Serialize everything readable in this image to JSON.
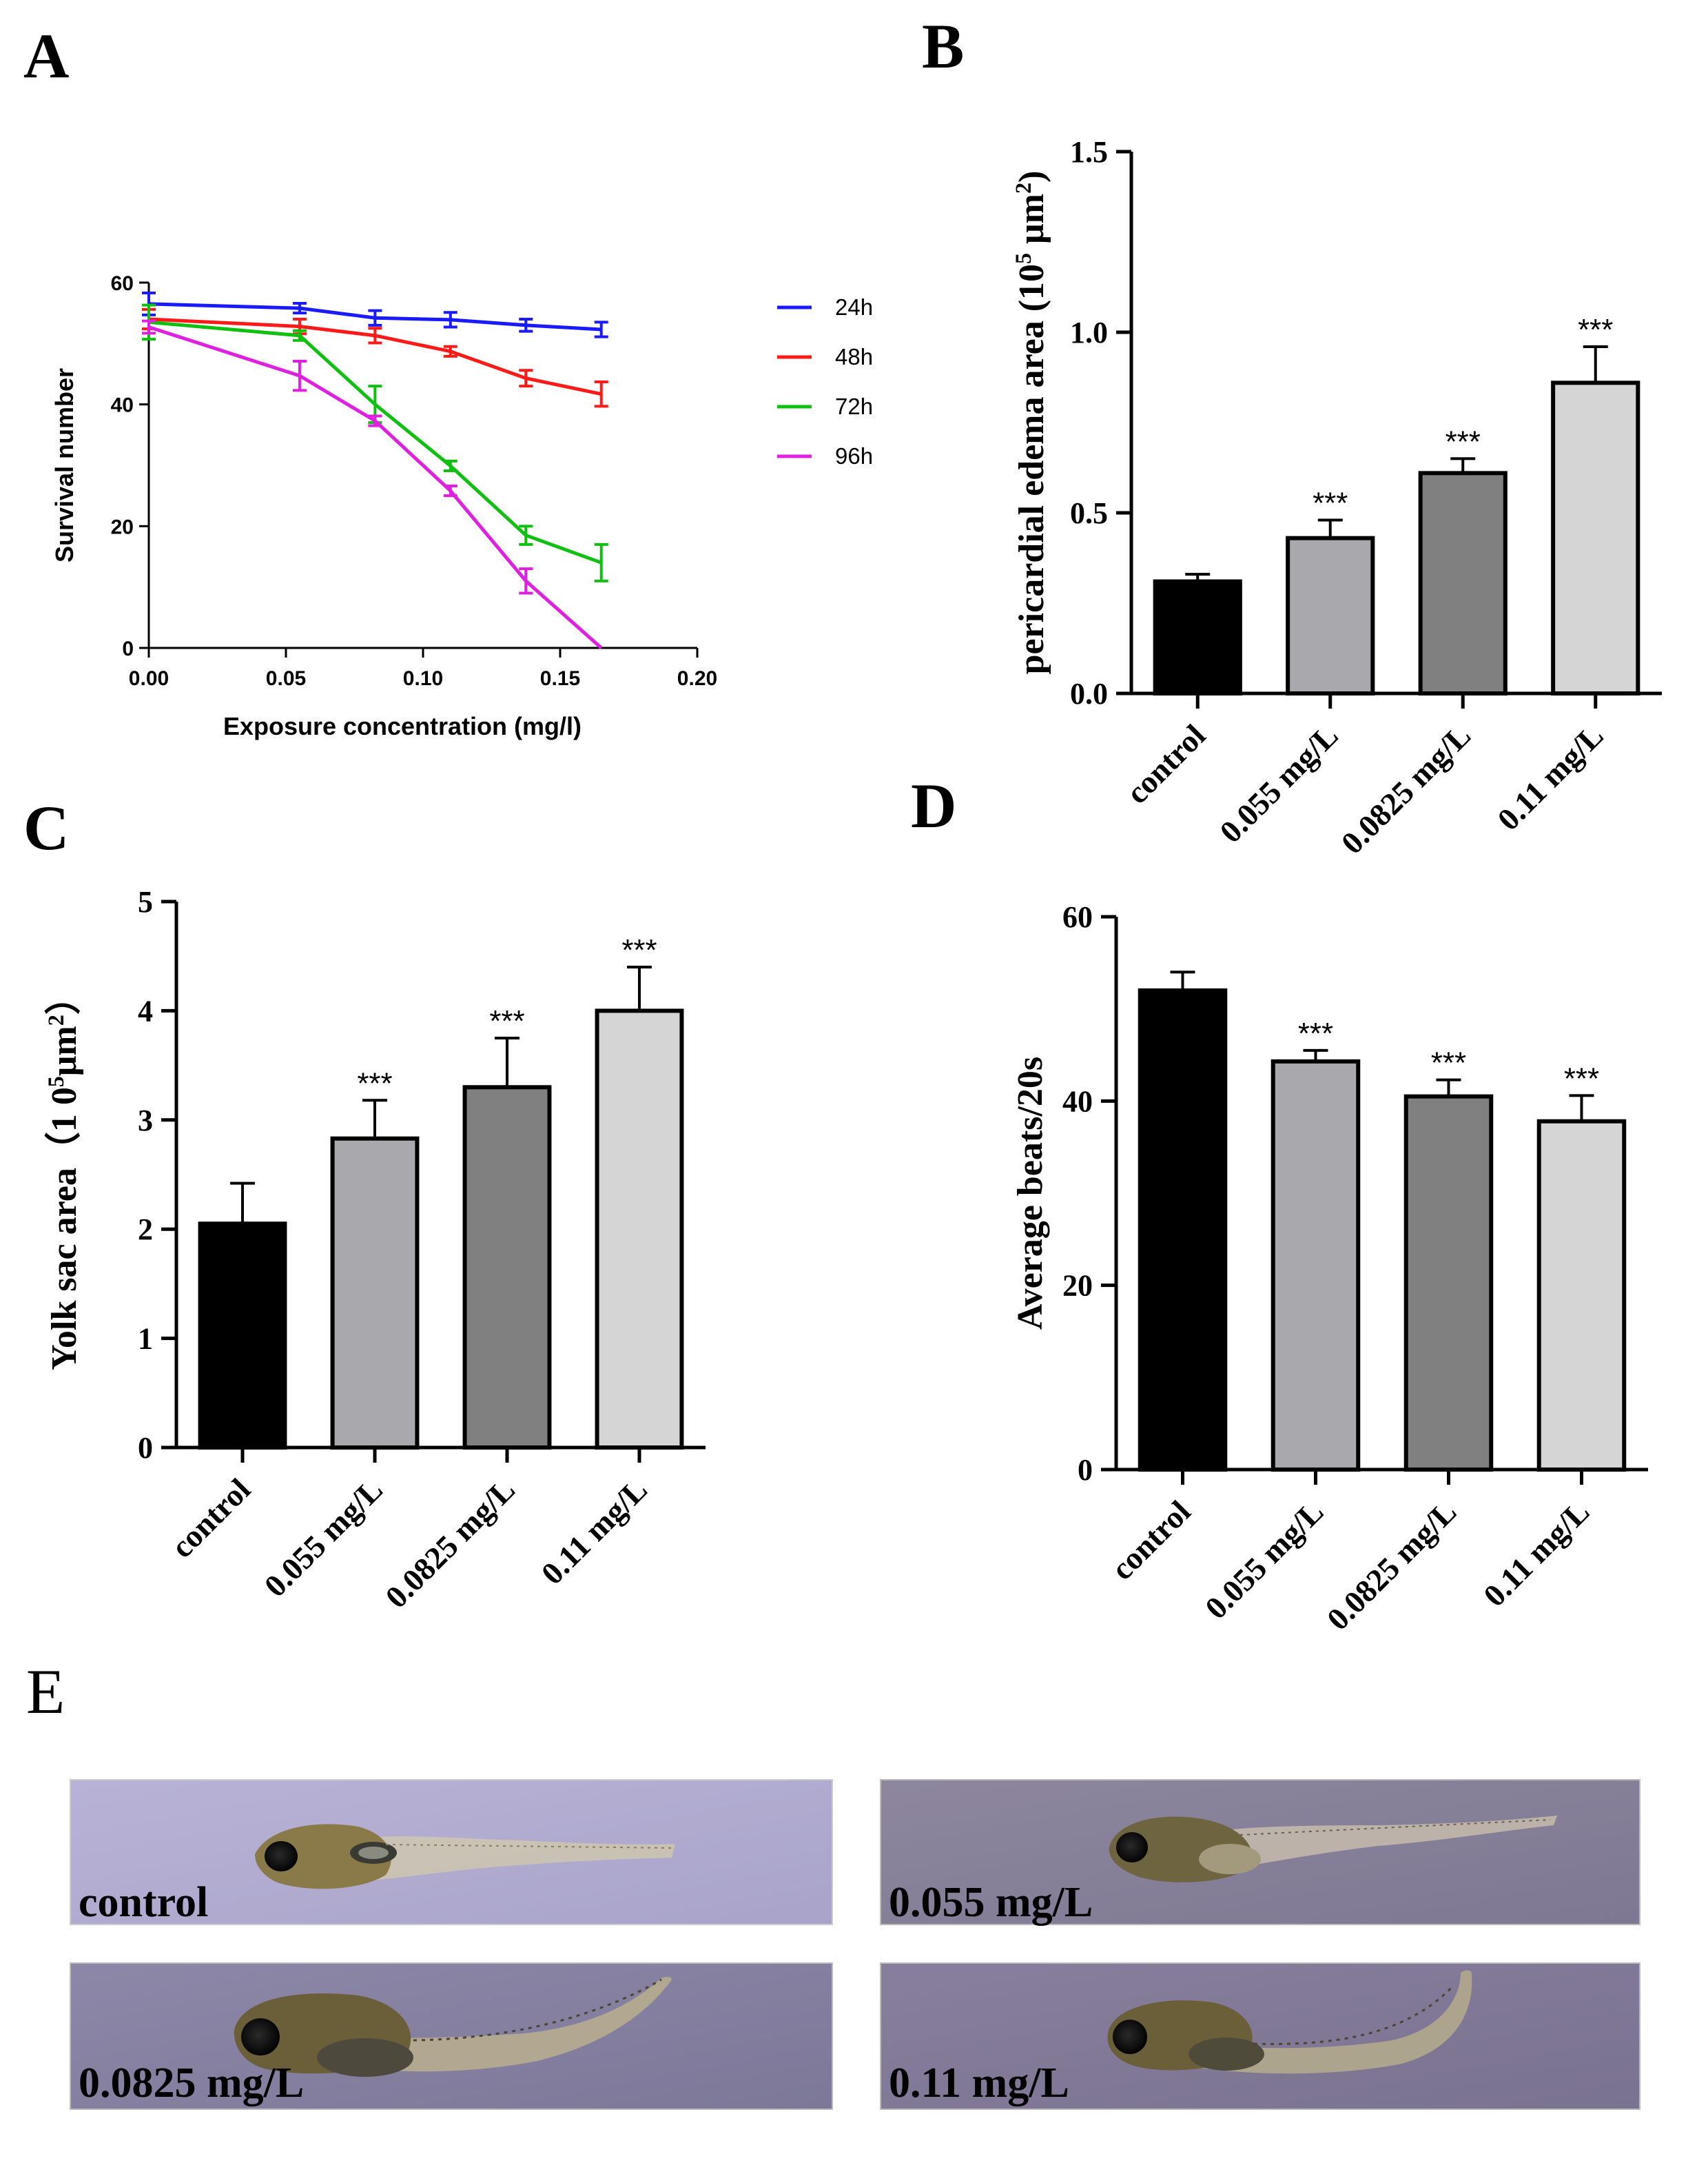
{
  "chart_data": [
    {
      "id": "A",
      "type": "line",
      "panel_label": "A",
      "xlabel": "Exposure concentration (mg/l)",
      "ylabel": "Survival number",
      "xlim": [
        0,
        0.2
      ],
      "ylim": [
        0,
        60
      ],
      "xticks": [
        "0.00",
        "0.05",
        "0.10",
        "0.15",
        "0.20"
      ],
      "yticks": [
        "0",
        "20",
        "40",
        "60"
      ],
      "x": [
        0,
        0.055,
        0.0825,
        0.11,
        0.1375,
        0.165
      ],
      "legend_position": "right",
      "series": [
        {
          "name": "24h",
          "color": "#1a1aff",
          "values": [
            56.5,
            55.8,
            54.2,
            53.9,
            53.0,
            52.3
          ],
          "errors": [
            1.8,
            0.8,
            1.2,
            1.2,
            1.0,
            1.2
          ]
        },
        {
          "name": "48h",
          "color": "#ff1a1a",
          "values": [
            54.0,
            52.8,
            51.3,
            48.7,
            44.3,
            41.7
          ],
          "errors": [
            1.6,
            1.2,
            1.2,
            0.8,
            1.3,
            2.0
          ]
        },
        {
          "name": "72h",
          "color": "#10c010",
          "values": [
            53.5,
            51.3,
            40.0,
            29.9,
            18.5,
            14.0
          ],
          "errors": [
            2.8,
            0.8,
            3.0,
            0.8,
            1.5,
            3.0
          ]
        },
        {
          "name": "96h",
          "color": "#e020e0",
          "values": [
            52.7,
            44.7,
            37.3,
            25.8,
            11.0,
            0
          ],
          "errors": [
            1.0,
            2.4,
            0.8,
            0.8,
            2.0,
            0
          ]
        }
      ]
    },
    {
      "id": "B",
      "type": "bar",
      "panel_label": "B",
      "ylabel": "pericardial edema area (10",
      "ylabel_sup_exp": "5",
      "ylabel_unit": " μm",
      "ylabel_sup_sq": "2",
      "ylabel_close": ")",
      "ylim": [
        0,
        1.5
      ],
      "yticks": [
        "0.0",
        "0.5",
        "1.0",
        "1.5"
      ],
      "categories": [
        "control",
        "0.055 mg/L",
        "0.0825 mg/L",
        "0.11 mg/L"
      ],
      "values": [
        0.31,
        0.43,
        0.61,
        0.86
      ],
      "errors": [
        0.02,
        0.05,
        0.04,
        0.1
      ],
      "significance": [
        "",
        "***",
        "***",
        "***"
      ],
      "colors": [
        "#000000",
        "#a8a8ad",
        "#808080",
        "#d5d5d5"
      ]
    },
    {
      "id": "C",
      "type": "bar",
      "panel_label": "C",
      "ylabel": "Yolk sac area（1 0",
      "ylabel_sup_exp": "5",
      "ylabel_unit": "μm",
      "ylabel_sup_sq": "2",
      "ylabel_close": "）",
      "ylim": [
        0,
        5
      ],
      "yticks": [
        "0",
        "1",
        "2",
        "3",
        "4",
        "5"
      ],
      "categories": [
        "control",
        "0.055 mg/L",
        "0.0825 mg/L",
        "0.11 mg/L"
      ],
      "values": [
        2.05,
        2.83,
        3.3,
        4.0
      ],
      "errors": [
        0.37,
        0.35,
        0.45,
        0.4
      ],
      "significance": [
        "",
        "***",
        "***",
        "***"
      ],
      "colors": [
        "#000000",
        "#a8a8ad",
        "#808080",
        "#d5d5d5"
      ]
    },
    {
      "id": "D",
      "type": "bar",
      "panel_label": "D",
      "ylabel": "Average beats/20s",
      "ylim": [
        0,
        60
      ],
      "yticks": [
        "0",
        "20",
        "40",
        "60"
      ],
      "categories": [
        "control",
        "0.055 mg/L",
        "0.0825 mg/L",
        "0.11 mg/L"
      ],
      "values": [
        52.0,
        44.3,
        40.5,
        37.8
      ],
      "errors": [
        2.0,
        1.2,
        1.8,
        2.8
      ],
      "significance": [
        "",
        "***",
        "***",
        "***"
      ],
      "colors": [
        "#000000",
        "#a8a8ad",
        "#808080",
        "#d5d5d5"
      ]
    }
  ],
  "panel_e": {
    "label": "E",
    "photos": [
      {
        "caption": "control"
      },
      {
        "caption": "0.055 mg/L"
      },
      {
        "caption": "0.0825 mg/L"
      },
      {
        "caption": "0.11 mg/L"
      }
    ]
  }
}
